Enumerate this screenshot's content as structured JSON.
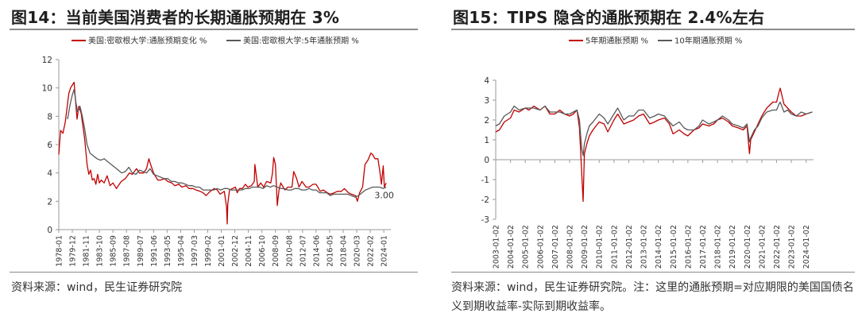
{
  "figure14": {
    "title": "图14：当前美国消费者的长期通胀预期在 3%",
    "source": "资料来源：wind，民生证券研究院",
    "chart_data": {
      "type": "line",
      "title": "",
      "xlabel": "",
      "ylabel": "",
      "ylim": [
        0,
        12
      ],
      "yticks": [
        0,
        2,
        4,
        6,
        8,
        10,
        12
      ],
      "xlim": [
        "1978-01",
        "2025-01"
      ],
      "xticks": [
        "1978-01",
        "1979-12",
        "1981-11",
        "1983-10",
        "1985-09",
        "1987-08",
        "1989-07",
        "1991-06",
        "1993-05",
        "1995-04",
        "1997-03",
        "1999-02",
        "2001-01",
        "2002-12",
        "2004-11",
        "2006-10",
        "2008-09",
        "2010-08",
        "2012-07",
        "2014-06",
        "2016-05",
        "2018-04",
        "2020-03",
        "2022-02",
        "2024-01"
      ],
      "grid": false,
      "legend": "top-left",
      "annotations": [
        {
          "text": "3.00",
          "x": "2024-04",
          "y": 3.0
        }
      ],
      "series": [
        {
          "name": "美国:密歇根大学:通胀预期变化 %",
          "color": "#c00000",
          "x": [
            "1978-01",
            "1978-04",
            "1978-08",
            "1978-12",
            "1979-03",
            "1979-06",
            "1979-09",
            "1979-12",
            "1980-03",
            "1980-05",
            "1980-08",
            "1980-11",
            "1981-03",
            "1981-06",
            "1981-09",
            "1982-01",
            "1982-04",
            "1982-07",
            "1982-10",
            "1983-01",
            "1983-04",
            "1983-07",
            "1983-10",
            "1984-01",
            "1984-06",
            "1984-11",
            "1985-04",
            "1985-09",
            "1986-03",
            "1986-06",
            "1986-11",
            "1987-06",
            "1988-01",
            "1988-06",
            "1989-01",
            "1989-06",
            "1990-01",
            "1990-06",
            "1990-10",
            "1991-01",
            "1991-06",
            "1992-01",
            "1992-06",
            "1993-01",
            "1993-06",
            "1994-01",
            "1994-06",
            "1995-01",
            "1995-06",
            "1996-01",
            "1996-06",
            "1997-01",
            "1997-06",
            "1998-01",
            "1998-06",
            "1998-11",
            "1999-06",
            "2000-01",
            "2000-06",
            "2000-11",
            "2001-06",
            "2001-10",
            "2001-11",
            "2001-12",
            "2002-03",
            "2002-08",
            "2003-01",
            "2003-04",
            "2003-08",
            "2004-01",
            "2004-06",
            "2004-10",
            "2005-04",
            "2005-09",
            "2005-10",
            "2006-03",
            "2006-08",
            "2007-01",
            "2007-06",
            "2008-01",
            "2008-04",
            "2008-06",
            "2008-09",
            "2008-11",
            "2008-12",
            "2009-03",
            "2009-06",
            "2010-01",
            "2010-06",
            "2011-01",
            "2011-04",
            "2011-09",
            "2012-01",
            "2012-06",
            "2013-01",
            "2013-06",
            "2014-01",
            "2014-06",
            "2015-01",
            "2015-06",
            "2016-01",
            "2016-06",
            "2017-01",
            "2017-06",
            "2018-01",
            "2018-06",
            "2019-01",
            "2019-06",
            "2020-01",
            "2020-04",
            "2020-08",
            "2021-01",
            "2021-05",
            "2021-10",
            "2022-03",
            "2022-06",
            "2022-10",
            "2023-03",
            "2023-06",
            "2023-09",
            "2023-12",
            "2024-02",
            "2024-05"
          ],
          "values": [
            5.3,
            7.0,
            6.8,
            7.6,
            8.6,
            9.6,
            10.0,
            10.2,
            10.4,
            9.3,
            7.8,
            8.7,
            8.2,
            7.3,
            6.4,
            4.6,
            3.9,
            4.2,
            3.5,
            3.6,
            3.2,
            3.9,
            3.3,
            3.5,
            3.3,
            3.8,
            3.1,
            3.3,
            2.9,
            3.1,
            3.4,
            3.6,
            4.0,
            3.9,
            4.3,
            4.0,
            4.0,
            4.3,
            5.0,
            4.6,
            4.0,
            3.5,
            3.5,
            3.6,
            3.4,
            3.3,
            3.1,
            3.2,
            3.0,
            3.1,
            2.9,
            2.9,
            2.8,
            2.7,
            2.6,
            2.4,
            2.7,
            2.9,
            2.8,
            2.5,
            2.7,
            1.6,
            0.4,
            1.8,
            2.8,
            2.9,
            3.0,
            2.6,
            2.9,
            2.9,
            3.2,
            3.0,
            3.1,
            3.4,
            4.6,
            3.0,
            3.3,
            3.0,
            3.4,
            3.3,
            4.0,
            5.1,
            4.6,
            2.8,
            1.7,
            2.8,
            3.3,
            2.8,
            3.0,
            3.0,
            4.1,
            3.6,
            3.0,
            3.4,
            3.0,
            3.0,
            3.2,
            3.2,
            2.7,
            2.8,
            2.6,
            2.5,
            2.6,
            2.7,
            2.7,
            2.9,
            2.6,
            2.5,
            2.4,
            2.0,
            2.6,
            3.0,
            4.6,
            4.9,
            5.4,
            5.3,
            5.0,
            5.0,
            4.2,
            3.2,
            4.5,
            3.0,
            3.3
          ]
        },
        {
          "name": "美国:密歇根大学:5年通胀预期 %",
          "color": "#595959",
          "x": [
            "1979-04",
            "1979-08",
            "1979-12",
            "1980-03",
            "1980-06",
            "1980-09",
            "1981-01",
            "1981-05",
            "1981-09",
            "1982-01",
            "1982-06",
            "1982-12",
            "1983-06",
            "1983-12",
            "1984-06",
            "1984-12",
            "1985-06",
            "1985-12",
            "1986-06",
            "1986-12",
            "1987-06",
            "1987-12",
            "1988-06",
            "1988-12",
            "1989-06",
            "1989-12",
            "1990-06",
            "1990-12",
            "1991-06",
            "1991-12",
            "1992-06",
            "1992-12",
            "1993-06",
            "1993-12",
            "1994-06",
            "1994-12",
            "1995-06",
            "1995-12",
            "1996-06",
            "1996-12",
            "1997-06",
            "1997-12",
            "1998-06",
            "1998-12",
            "1999-06",
            "1999-12",
            "2000-06",
            "2000-12",
            "2001-06",
            "2001-12",
            "2002-06",
            "2002-12",
            "2003-06",
            "2003-12",
            "2004-06",
            "2004-12",
            "2005-06",
            "2005-12",
            "2006-06",
            "2006-12",
            "2007-06",
            "2007-12",
            "2008-06",
            "2008-12",
            "2009-06",
            "2009-12",
            "2010-06",
            "2010-12",
            "2011-06",
            "2011-12",
            "2012-06",
            "2012-12",
            "2013-06",
            "2013-12",
            "2014-06",
            "2014-12",
            "2015-06",
            "2015-12",
            "2016-06",
            "2016-12",
            "2017-06",
            "2017-12",
            "2018-06",
            "2018-12",
            "2019-06",
            "2019-12",
            "2020-06",
            "2020-12",
            "2021-06",
            "2021-12",
            "2022-06",
            "2022-12",
            "2023-06",
            "2023-12",
            "2024-05"
          ],
          "values": [
            7.8,
            8.8,
            9.5,
            9.9,
            9.0,
            8.3,
            8.7,
            8.0,
            7.1,
            6.0,
            5.4,
            5.2,
            5.0,
            4.9,
            5.0,
            4.8,
            4.6,
            4.4,
            4.2,
            4.0,
            4.1,
            4.4,
            4.0,
            3.9,
            4.2,
            4.1,
            4.0,
            4.3,
            3.9,
            3.8,
            3.7,
            3.6,
            3.6,
            3.4,
            3.4,
            3.3,
            3.3,
            3.2,
            3.1,
            3.1,
            3.0,
            3.0,
            2.8,
            2.8,
            2.8,
            2.8,
            2.9,
            2.8,
            2.9,
            2.9,
            2.8,
            2.8,
            2.8,
            2.8,
            2.9,
            2.9,
            3.0,
            3.0,
            3.0,
            2.9,
            3.1,
            3.0,
            3.1,
            3.0,
            2.9,
            2.9,
            2.8,
            2.8,
            2.9,
            2.9,
            2.8,
            2.8,
            2.9,
            2.8,
            2.8,
            2.6,
            2.6,
            2.6,
            2.4,
            2.5,
            2.5,
            2.5,
            2.5,
            2.5,
            2.4,
            2.3,
            2.4,
            2.6,
            2.8,
            2.9,
            3.0,
            3.0,
            3.0,
            2.9,
            3.0
          ]
        }
      ]
    }
  },
  "figure15": {
    "title": "图15：TIPS 隐含的通胀预期在 2.4%左右",
    "source": "资料来源：wind，民生证券研究院。注：这里的通胀预期=对应期限的美国国债名义到期收益率-实际到期收益率。",
    "chart_data": {
      "type": "line",
      "title": "",
      "xlabel": "",
      "ylabel": "",
      "ylim": [
        -3,
        4
      ],
      "yticks": [
        -3,
        -2,
        -1,
        0,
        1,
        2,
        3,
        4
      ],
      "xlim": [
        "2003-01-02",
        "2024-07-01"
      ],
      "xticks": [
        "2003-01-02",
        "2004-01-02",
        "2005-01-02",
        "2006-01-02",
        "2007-01-02",
        "2008-01-02",
        "2009-01-02",
        "2010-01-02",
        "2011-01-02",
        "2012-01-02",
        "2013-01-02",
        "2014-01-02",
        "2015-01-02",
        "2016-01-02",
        "2017-01-02",
        "2018-01-02",
        "2019-01-02",
        "2020-01-02",
        "2021-01-02",
        "2022-01-02",
        "2023-01-02",
        "2024-01-02"
      ],
      "grid": false,
      "legend": "top-center",
      "series": [
        {
          "name": "5年期通胀预期 %",
          "color": "#c00000",
          "x": [
            "2003-01",
            "2003-04",
            "2003-08",
            "2004-01",
            "2004-04",
            "2004-08",
            "2005-01",
            "2005-04",
            "2005-08",
            "2006-01",
            "2006-05",
            "2006-09",
            "2007-01",
            "2007-05",
            "2007-09",
            "2008-01",
            "2008-04",
            "2008-07",
            "2008-09",
            "2008-10",
            "2008-11",
            "2008-12",
            "2009-01",
            "2009-03",
            "2009-05",
            "2009-08",
            "2010-01",
            "2010-05",
            "2010-08",
            "2011-01",
            "2011-04",
            "2011-09",
            "2012-01",
            "2012-05",
            "2012-09",
            "2013-01",
            "2013-06",
            "2013-10",
            "2014-01",
            "2014-06",
            "2014-10",
            "2015-01",
            "2015-06",
            "2015-10",
            "2016-01",
            "2016-06",
            "2016-10",
            "2017-01",
            "2017-06",
            "2017-10",
            "2018-01",
            "2018-05",
            "2018-10",
            "2019-01",
            "2019-06",
            "2019-10",
            "2020-01",
            "2020-03",
            "2020-04",
            "2020-07",
            "2020-10",
            "2021-01",
            "2021-05",
            "2021-10",
            "2022-01",
            "2022-03",
            "2022-04",
            "2022-07",
            "2022-10",
            "2023-01",
            "2023-05",
            "2023-09",
            "2024-01",
            "2024-06"
          ],
          "values": [
            1.4,
            1.5,
            1.9,
            2.1,
            2.5,
            2.4,
            2.6,
            2.5,
            2.7,
            2.5,
            2.7,
            2.3,
            2.3,
            2.5,
            2.3,
            2.2,
            2.3,
            2.5,
            1.6,
            0.4,
            -0.9,
            -2.1,
            0.3,
            0.8,
            1.2,
            1.5,
            1.9,
            1.8,
            1.4,
            2.0,
            2.3,
            1.8,
            1.9,
            2.0,
            2.2,
            2.3,
            1.8,
            1.9,
            2.0,
            2.1,
            1.8,
            1.3,
            1.5,
            1.3,
            1.2,
            1.5,
            1.6,
            1.8,
            1.7,
            1.8,
            2.0,
            2.1,
            1.9,
            1.7,
            1.6,
            1.5,
            1.7,
            0.3,
            1.0,
            1.4,
            1.8,
            2.2,
            2.6,
            2.9,
            2.9,
            3.4,
            3.6,
            2.8,
            2.6,
            2.4,
            2.2,
            2.2,
            2.3,
            2.4
          ]
        },
        {
          "name": "10年期通胀预期 %",
          "color": "#595959",
          "x": [
            "2003-01",
            "2003-04",
            "2003-08",
            "2004-01",
            "2004-04",
            "2004-08",
            "2005-01",
            "2005-04",
            "2005-08",
            "2006-01",
            "2006-05",
            "2006-09",
            "2007-01",
            "2007-05",
            "2007-09",
            "2008-01",
            "2008-04",
            "2008-07",
            "2008-09",
            "2008-10",
            "2008-11",
            "2008-12",
            "2009-01",
            "2009-03",
            "2009-05",
            "2009-08",
            "2010-01",
            "2010-05",
            "2010-08",
            "2011-01",
            "2011-04",
            "2011-09",
            "2012-01",
            "2012-05",
            "2012-09",
            "2013-01",
            "2013-06",
            "2013-10",
            "2014-01",
            "2014-06",
            "2014-10",
            "2015-01",
            "2015-06",
            "2015-10",
            "2016-01",
            "2016-06",
            "2016-10",
            "2017-01",
            "2017-06",
            "2017-10",
            "2018-01",
            "2018-05",
            "2018-10",
            "2019-01",
            "2019-06",
            "2019-10",
            "2020-01",
            "2020-03",
            "2020-04",
            "2020-07",
            "2020-10",
            "2021-01",
            "2021-05",
            "2021-10",
            "2022-01",
            "2022-03",
            "2022-04",
            "2022-07",
            "2022-10",
            "2023-01",
            "2023-05",
            "2023-09",
            "2024-01",
            "2024-06"
          ],
          "values": [
            1.7,
            1.8,
            2.2,
            2.4,
            2.7,
            2.5,
            2.6,
            2.6,
            2.6,
            2.5,
            2.7,
            2.4,
            2.4,
            2.4,
            2.3,
            2.3,
            2.4,
            2.5,
            2.0,
            1.2,
            0.5,
            0.2,
            0.8,
            1.3,
            1.7,
            1.9,
            2.3,
            2.1,
            1.8,
            2.3,
            2.6,
            2.0,
            2.2,
            2.2,
            2.5,
            2.5,
            2.1,
            2.2,
            2.3,
            2.2,
            1.9,
            1.7,
            1.9,
            1.6,
            1.5,
            1.5,
            1.7,
            2.0,
            1.8,
            1.9,
            2.0,
            2.2,
            2.0,
            1.8,
            1.7,
            1.6,
            1.8,
            0.9,
            1.1,
            1.5,
            1.7,
            2.1,
            2.4,
            2.5,
            2.5,
            2.8,
            2.9,
            2.4,
            2.5,
            2.3,
            2.2,
            2.4,
            2.3,
            2.4
          ]
        }
      ]
    }
  }
}
